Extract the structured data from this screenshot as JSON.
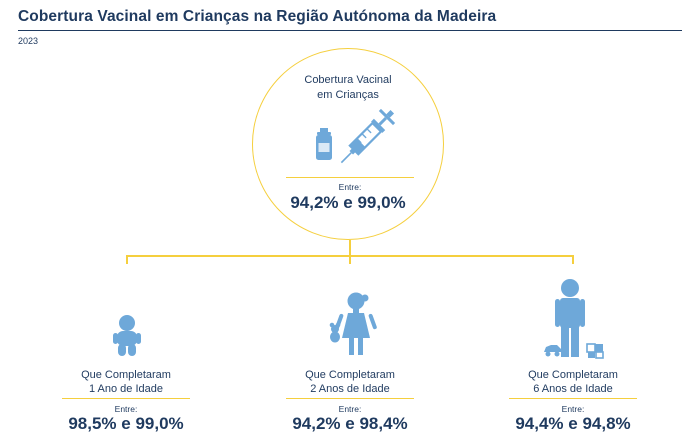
{
  "header": {
    "title": "Cobertura Vacinal em Crianças na Região Autónoma da Madeira",
    "year": "2023"
  },
  "main": {
    "label_line1": "Cobertura Vacinal",
    "label_line2": "em Crianças",
    "between": "Entre:",
    "range": "94,2% e 99,0%",
    "icon": "syringe-and-vial-icon"
  },
  "groups": [
    {
      "label_line1": "Que Completaram",
      "label_line2": "1 Ano de Idade",
      "between": "Entre:",
      "range": "98,5% e 99,0%",
      "icon": "baby-icon"
    },
    {
      "label_line1": "Que Completaram",
      "label_line2": "2 Anos de Idade",
      "between": "Entre:",
      "range": "94,2% e 98,4%",
      "icon": "girl-with-teddy-icon"
    },
    {
      "label_line1": "Que Completaram",
      "label_line2": "6 Anos de Idade",
      "between": "Entre:",
      "range": "94,4% e 94,8%",
      "icon": "child-with-toys-icon"
    }
  ],
  "colors": {
    "accent": "#f5cf3e",
    "text": "#1f3a5f",
    "icon": "#6ea8d9"
  }
}
